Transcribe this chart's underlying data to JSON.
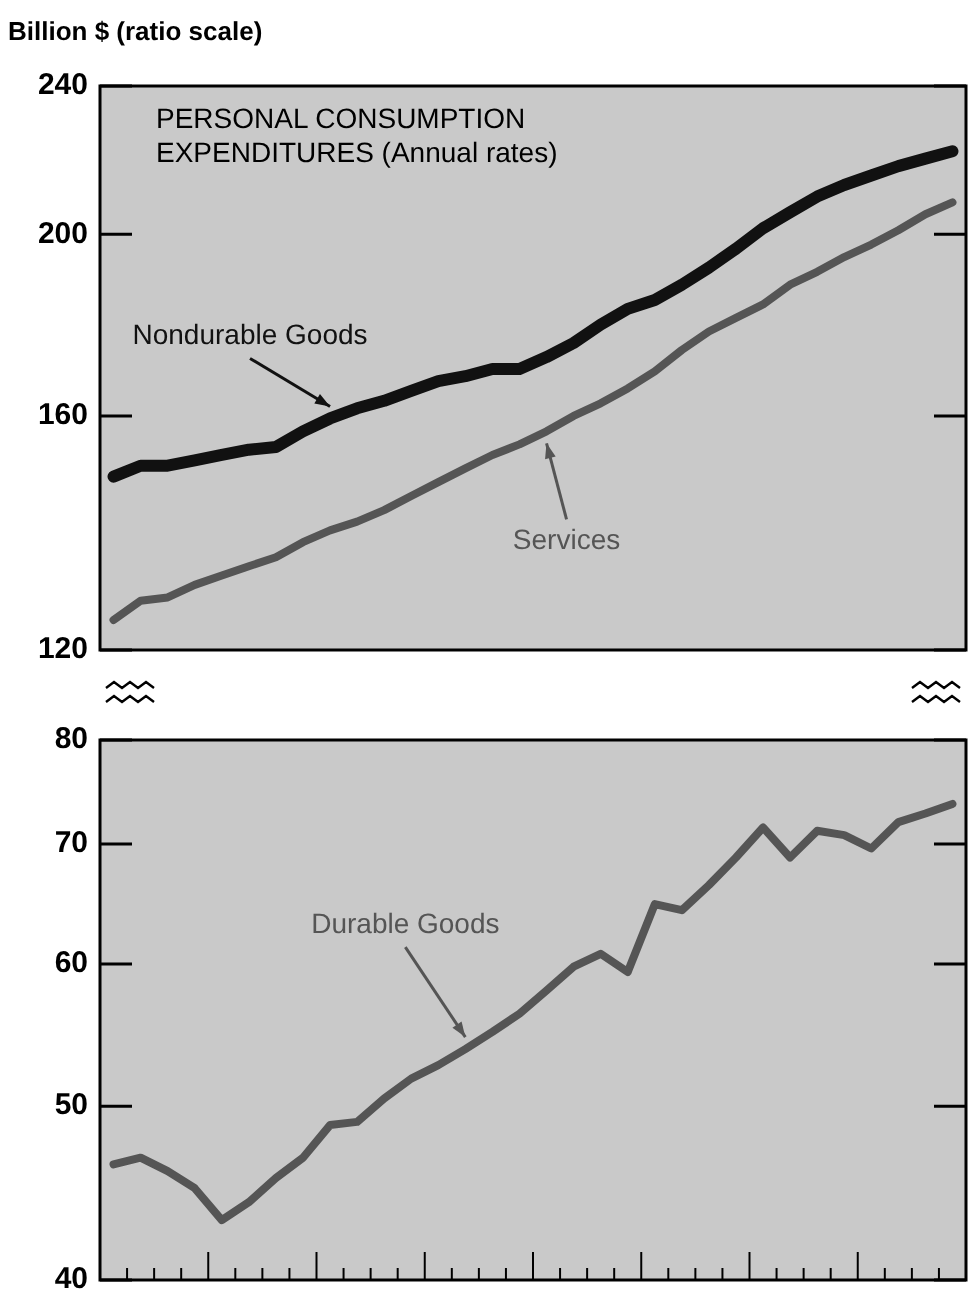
{
  "chart_data": [
    {
      "type": "line",
      "title": "PERSONAL CONSUMPTION EXPENDITURES (Annual rates)",
      "ylabel": "Billion $ (ratio scale)",
      "log": "y",
      "tick_labels": "y",
      "categories": [
        null,
        null,
        null,
        null,
        null,
        null,
        null,
        null,
        null,
        null,
        null,
        null,
        null,
        null,
        null,
        null,
        null,
        null,
        null,
        null,
        null,
        null,
        null,
        null,
        null,
        null,
        null,
        null,
        null,
        null,
        null,
        null
      ],
      "ylim": [
        120,
        240
      ],
      "yticks": [
        120,
        160,
        200,
        240
      ],
      "series": [
        {
          "name": "Nondurable Goods",
          "color": "#111111",
          "values": [
            148.5,
            150.5,
            150.5,
            151.5,
            152.5,
            153.5,
            154,
            157,
            159.5,
            161.5,
            163,
            165,
            167,
            168,
            169.5,
            169.5,
            172,
            175,
            179,
            182.5,
            184.5,
            188,
            192,
            196.5,
            201.5,
            205.5,
            209.5,
            212.5,
            215,
            217.5,
            219.5,
            221.5
          ]
        },
        {
          "name": "Services",
          "color": "#555555",
          "values": [
            124.5,
            127.5,
            128,
            130,
            131.5,
            133,
            134.5,
            137,
            139,
            140.5,
            142.5,
            145,
            147.5,
            150,
            152.5,
            154.5,
            157,
            160,
            162.5,
            165.5,
            169,
            173.5,
            177.5,
            180.5,
            183.5,
            188,
            191,
            194.5,
            197.5,
            201,
            205,
            208
          ]
        }
      ]
    },
    {
      "type": "line",
      "log": "y",
      "tick_labels": "y",
      "categories": [
        null,
        null,
        null,
        null,
        null,
        null,
        null,
        null,
        null,
        null,
        null,
        null,
        null,
        null,
        null,
        null,
        null,
        null,
        null,
        null,
        null,
        null,
        null,
        null,
        null,
        null,
        null,
        null,
        null,
        null,
        null,
        null
      ],
      "ylim": [
        40,
        80
      ],
      "yticks": [
        40,
        50,
        60,
        70,
        80
      ],
      "series": [
        {
          "name": "Durable Goods",
          "color": "#555555",
          "values": [
            46.4,
            46.8,
            46,
            45,
            43.2,
            44.2,
            45.6,
            46.8,
            48.8,
            49,
            50.5,
            51.8,
            52.7,
            53.8,
            55,
            56.3,
            58,
            59.8,
            60.8,
            59.4,
            64.8,
            64.3,
            66.4,
            68.8,
            71.5,
            68.8,
            71.2,
            70.8,
            69.6,
            72,
            72.8,
            73.7
          ]
        }
      ]
    }
  ]
}
